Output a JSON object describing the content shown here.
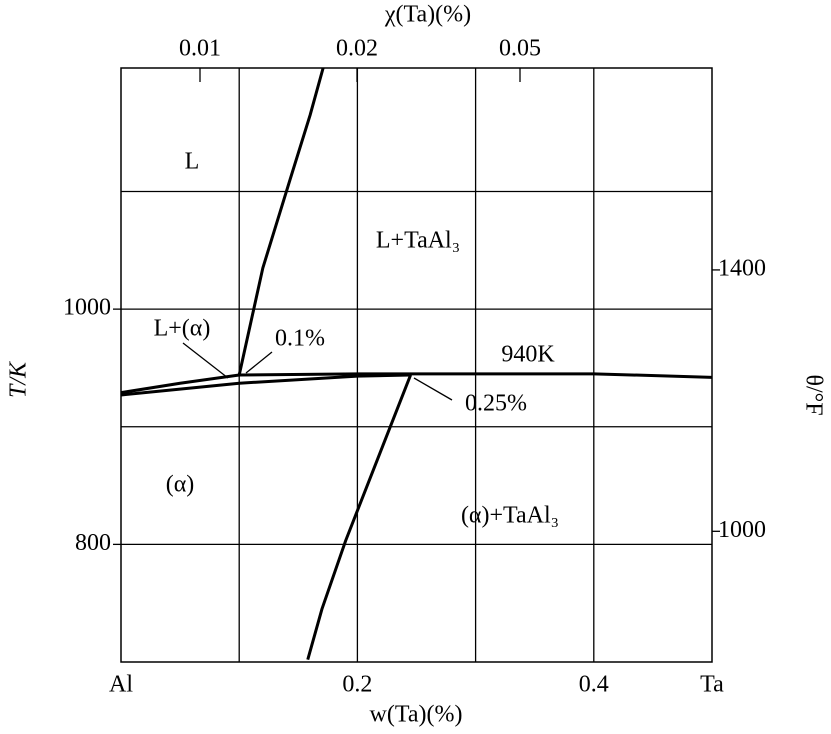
{
  "chart_data": {
    "type": "line",
    "xlabel": "w(Ta)(%)",
    "ylabel": "T/K",
    "y2label": "θ/°F",
    "x2label": "χ(Ta)(%)",
    "xlim": [
      0,
      0.5
    ],
    "xticks": [
      {
        "value": 0,
        "label": "Al"
      },
      0.2,
      0.4,
      {
        "value": 0.5,
        "label": "Ta"
      }
    ],
    "xgrid": [
      0.1,
      0.2,
      0.3,
      0.4
    ],
    "ylim": [
      700,
      1205
    ],
    "yticks": [
      800,
      1000
    ],
    "ygrid": [
      800,
      900,
      1000,
      1100
    ],
    "y2lim": [
      800,
      1709
    ],
    "y2ticks": [
      1000,
      1400
    ],
    "x2ticks": [
      "0.01",
      "0.02",
      "0.05"
    ],
    "color": "#000000",
    "curves": [
      {
        "x": [
          0.1,
          0.12,
          0.143,
          0.16,
          0.171
        ],
        "values": [
          944,
          1035,
          1110,
          1165,
          1205
        ]
      },
      {
        "x": [
          0,
          0.05,
          0.1,
          0.2,
          0.3,
          0.4,
          0.5
        ],
        "values": [
          929,
          937,
          944,
          945,
          945,
          945,
          942
        ]
      },
      {
        "x": [
          0,
          0.1,
          0.2,
          0.245
        ],
        "values": [
          927,
          937,
          943,
          944
        ]
      },
      {
        "x": [
          0.245,
          0.22,
          0.19,
          0.17,
          0.158
        ],
        "values": [
          944,
          880,
          803,
          745,
          702
        ]
      }
    ],
    "annotations": [
      "L",
      "L+TaAl₃",
      "L+(α)",
      "0.1%",
      "940K",
      "0.25%",
      "(α)",
      "(α)+TaAl₃"
    ]
  }
}
